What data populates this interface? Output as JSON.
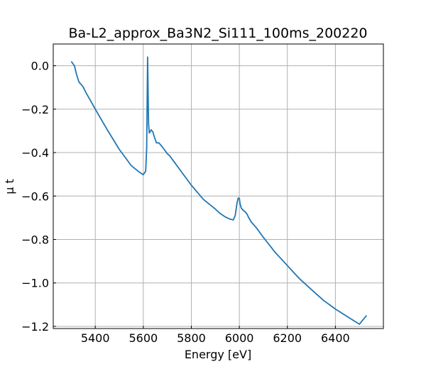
{
  "chart_data": {
    "type": "line",
    "title": "Ba-L2_approx_Ba3N2_Si111_100ms_200220",
    "xlabel": "Energy [eV]",
    "ylabel": "μ t",
    "xlim": [
      5225,
      6600
    ],
    "ylim": [
      -1.21,
      0.1
    ],
    "xticks": [
      {
        "value": 5400,
        "label": "5400"
      },
      {
        "value": 5600,
        "label": "5600"
      },
      {
        "value": 5800,
        "label": "5800"
      },
      {
        "value": 6000,
        "label": "6000"
      },
      {
        "value": 6200,
        "label": "6200"
      },
      {
        "value": 6400,
        "label": "6400"
      }
    ],
    "yticks": [
      {
        "value": 0.0,
        "label": "0.0"
      },
      {
        "value": -0.2,
        "label": "−0.2"
      },
      {
        "value": -0.4,
        "label": "−0.4"
      },
      {
        "value": -0.6,
        "label": "−0.6"
      },
      {
        "value": -0.8,
        "label": "−0.8"
      },
      {
        "value": -1.0,
        "label": "−1.0"
      },
      {
        "value": -1.2,
        "label": "−1.2"
      }
    ],
    "grid": true,
    "line_color": "#1f77b4",
    "series": [
      {
        "x": [
          5300,
          5313,
          5322,
          5332,
          5348,
          5362,
          5380,
          5400,
          5450,
          5500,
          5550,
          5580,
          5600,
          5610,
          5614,
          5618,
          5620,
          5622,
          5625,
          5628,
          5633,
          5640,
          5648,
          5655,
          5665,
          5680,
          5690,
          5700,
          5710,
          5720,
          5730,
          5760,
          5800,
          5850,
          5900,
          5920,
          5940,
          5960,
          5975,
          5983,
          5990,
          5995,
          5998,
          6000,
          6003,
          6008,
          6015,
          6025,
          6033,
          6038,
          6050,
          6070,
          6100,
          6150,
          6200,
          6250,
          6300,
          6350,
          6400,
          6450,
          6500,
          6530
        ],
        "y": [
          0.02,
          0.0,
          -0.04,
          -0.075,
          -0.095,
          -0.125,
          -0.16,
          -0.2,
          -0.295,
          -0.385,
          -0.46,
          -0.487,
          -0.502,
          -0.485,
          -0.38,
          0.04,
          -0.12,
          -0.27,
          -0.31,
          -0.305,
          -0.295,
          -0.305,
          -0.335,
          -0.355,
          -0.355,
          -0.375,
          -0.39,
          -0.405,
          -0.415,
          -0.43,
          -0.445,
          -0.49,
          -0.55,
          -0.615,
          -0.66,
          -0.68,
          -0.695,
          -0.706,
          -0.71,
          -0.69,
          -0.635,
          -0.61,
          -0.61,
          -0.61,
          -0.635,
          -0.655,
          -0.665,
          -0.673,
          -0.685,
          -0.697,
          -0.72,
          -0.745,
          -0.79,
          -0.86,
          -0.92,
          -0.98,
          -1.03,
          -1.08,
          -1.12,
          -1.155,
          -1.19,
          -1.15
        ]
      }
    ]
  }
}
